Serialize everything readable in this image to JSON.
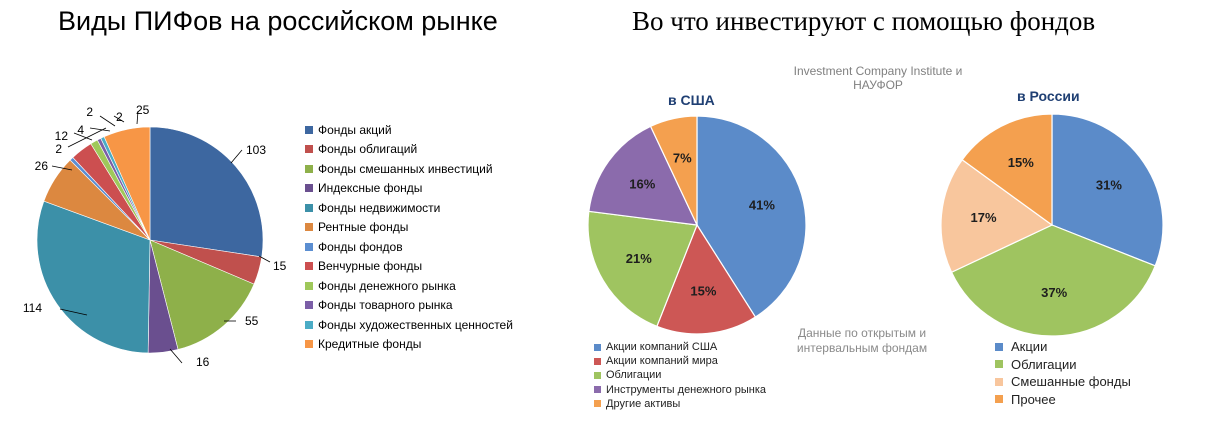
{
  "left": {
    "title": "Виды ПИФов на российском рынке"
  },
  "right": {
    "title": "Во что инвестируют с помощью  фондов",
    "source": "Investment Company Institute  и НАУФОР",
    "note": "Данные по открытым и интервальным фондам"
  },
  "chart_data": [
    {
      "type": "pie",
      "title": "Виды ПИФов на российском рынке",
      "legend_position": "right",
      "categories": [
        "Фонды акций",
        "Фонды облигаций",
        "Фонды смешанных инвестиций",
        "Индексные фонды",
        "Фонды недвижимости",
        "Рентные фонды",
        "Фонды фондов",
        "Венчурные фонды",
        "Фонды денежного рынка",
        "Фонды товарного рынка",
        "Фонды художественных ценностей",
        "Кредитные фонды"
      ],
      "values": [
        103,
        15,
        55,
        16,
        114,
        26,
        2,
        12,
        4,
        2,
        2,
        25
      ],
      "labels": [
        "103",
        "15",
        "55",
        "16",
        "114",
        "26",
        "2",
        "12",
        "4",
        "2",
        "2",
        "25"
      ],
      "colors": [
        "#3d67a0",
        "#c0504d",
        "#8eb04a",
        "#6a4f8f",
        "#3c90a8",
        "#dc8840",
        "#5b8ed1",
        "#cc4f50",
        "#9fc85a",
        "#7b5ea7",
        "#4bacc6",
        "#f79646"
      ]
    },
    {
      "type": "pie",
      "title": "в США",
      "legend_position": "bottom",
      "categories": [
        "Акции компаний США",
        "Акции компаний мира",
        "Облигации",
        "Инструменты денежного рынка",
        "Другие активы"
      ],
      "values": [
        41,
        15,
        21,
        16,
        7
      ],
      "labels": [
        "41%",
        "15%",
        "21%",
        "16%",
        "7%"
      ],
      "colors": [
        "#5b8bc9",
        "#cd5755",
        "#9fc460",
        "#8b6bac",
        "#f4a04f"
      ]
    },
    {
      "type": "pie",
      "title": "в России",
      "legend_position": "bottom",
      "categories": [
        "Акции",
        "Облигации",
        "Смешанные фонды",
        "Прочее"
      ],
      "values": [
        31,
        37,
        17,
        15
      ],
      "labels": [
        "31%",
        "37%",
        "17%",
        "15%"
      ],
      "colors": [
        "#5b8bc9",
        "#9fc460",
        "#f8c69d",
        "#f4a04f"
      ]
    }
  ]
}
